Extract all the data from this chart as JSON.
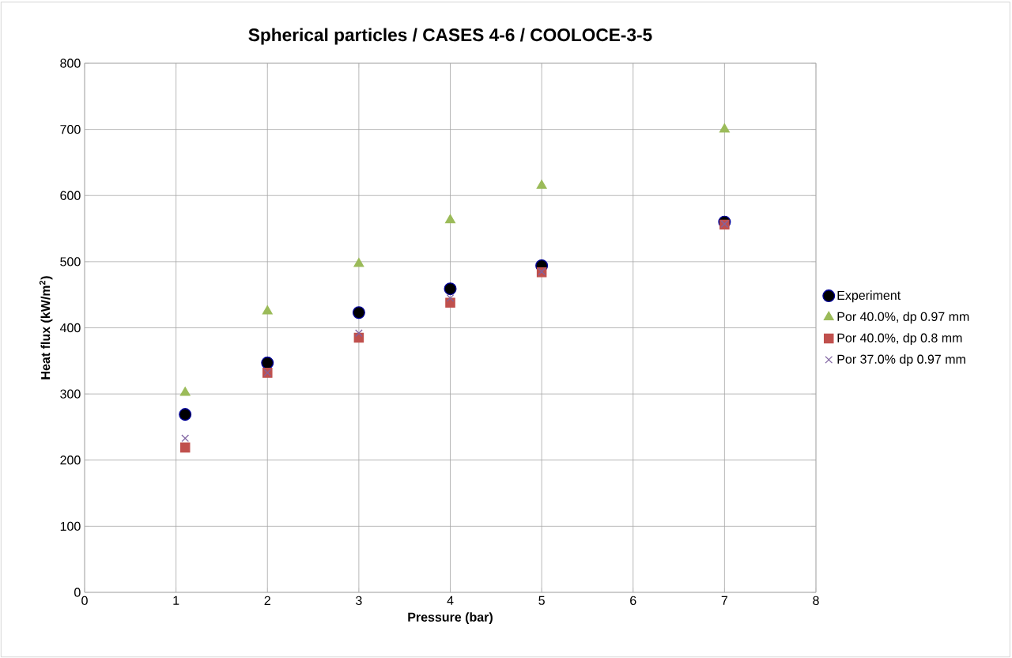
{
  "chart_data": {
    "type": "scatter",
    "title": "Spherical particles / CASES 4-6 / COOLOCE-3-5",
    "xlabel": "Pressure (bar)",
    "ylabel": "Heat flux (kW/m$^{2}$)",
    "x": [
      1.1,
      2,
      3,
      4,
      5,
      7
    ],
    "series": [
      {
        "name": "Experiment",
        "color": "#000000",
        "marker": "circle",
        "values": [
          269,
          347,
          423,
          459,
          494,
          560
        ]
      },
      {
        "name": "Por 40.0%, dp 0.97 mm",
        "color": "#9bbb59",
        "marker": "triangle",
        "values": [
          302,
          425,
          497,
          563,
          615,
          700
        ]
      },
      {
        "name": "Por 40.0%, dp 0.8 mm",
        "color": "#c0504d",
        "marker": "square",
        "values": [
          219,
          332,
          385,
          438,
          484,
          556
        ]
      },
      {
        "name": "Por 37.0% dp 0.97 mm",
        "color": "#8064a2",
        "marker": "cross",
        "values": [
          233,
          332,
          392,
          445,
          485,
          557
        ]
      }
    ],
    "xlim": [
      0,
      8
    ],
    "xticks": [
      0,
      1,
      2,
      3,
      4,
      5,
      6,
      7,
      8
    ],
    "ylim": [
      0,
      800
    ],
    "yticks": [
      0,
      100,
      200,
      300,
      400,
      500,
      600,
      700,
      800
    ],
    "grid": true,
    "legend": "right"
  }
}
